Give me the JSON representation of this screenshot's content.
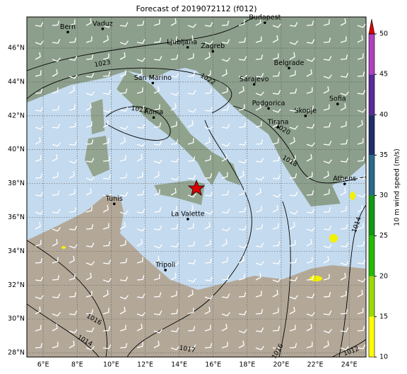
{
  "title": "Forecast of 2019072112 (f012)",
  "map": {
    "x_tick_labels": [
      "6°E",
      "8°E",
      "10°E",
      "12°E",
      "14°E",
      "16°E",
      "18°E",
      "20°E",
      "22°E",
      "24°E"
    ],
    "y_tick_labels": [
      "46°N",
      "44°N",
      "42°N",
      "40°N",
      "38°N",
      "36°N",
      "34°N",
      "32°N",
      "30°N",
      "28°N"
    ],
    "cities": [
      "Bern",
      "Vaduz",
      "Budapest",
      "Ljubljana",
      "Zagreb",
      "Belgrade",
      "Sarajevo",
      "San Marino",
      "Roma",
      "Podgorica",
      "Skopje",
      "Sofia",
      "Tirana",
      "Athens",
      "Tunis",
      "La Valette",
      "Tripoli"
    ],
    "isobar_labels": [
      "1023",
      "1022",
      "1023",
      "1020",
      "1018",
      "1016",
      "1014",
      "1017",
      "1016",
      "1012",
      "1014"
    ]
  },
  "colorbar": {
    "label": "10 m wind speed (m/s)",
    "tick_labels": [
      "10",
      "15",
      "20",
      "25",
      "30",
      "35",
      "40",
      "45",
      "50"
    ]
  }
}
